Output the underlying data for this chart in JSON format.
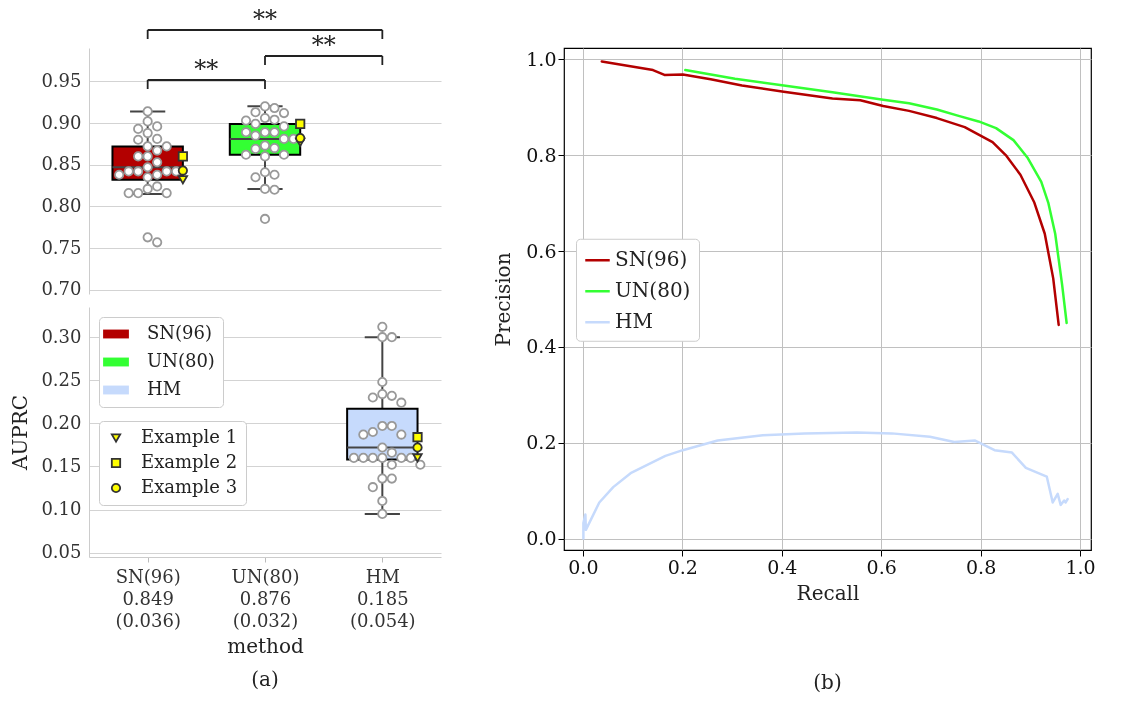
{
  "chart_data": [
    {
      "type": "box",
      "categories": [
        "SN(96)\n0.849\n(0.036)",
        "UN(80)\n0.876\n(0.032)",
        "HM\n0.185\n(0.054)"
      ],
      "ylim": [
        0.695,
        0.99
      ],
      "yticks": [
        {
          "value": 0.7,
          "label": "0.70"
        },
        0.75,
        {
          "value": 0.8,
          "label": "0.80"
        },
        0.85,
        {
          "value": 0.9,
          "label": "0.90"
        },
        0.95
      ],
      "grid": "y",
      "tick_labels": "y",
      "annotations": [
        "**",
        "**",
        "**"
      ],
      "series": [
        {
          "type": "box",
          "color": "#b30000",
          "boxes": [
            {
              "low": 0.815,
              "q1": 0.832,
              "median": 0.847,
              "q3": 0.872,
              "high": 0.914
            },
            null,
            null
          ]
        },
        {
          "type": "box",
          "color": "#33ff33",
          "boxes": [
            null,
            {
              "low": 0.821,
              "q1": 0.862,
              "median": 0.881,
              "q3": 0.899,
              "high": 0.92
            },
            null
          ]
        },
        {
          "type": "scatter",
          "color": "#999999",
          "marker": "circle",
          "x": [
            "SN(96)\n0.849\n(0.036)",
            "SN(96)\n0.849\n(0.036)",
            "SN(96)\n0.849\n(0.036)",
            "SN(96)\n0.849\n(0.036)",
            "SN(96)\n0.849\n(0.036)",
            "SN(96)\n0.849\n(0.036)",
            "SN(96)\n0.849\n(0.036)",
            "SN(96)\n0.849\n(0.036)",
            "SN(96)\n0.849\n(0.036)",
            "SN(96)\n0.849\n(0.036)",
            "SN(96)\n0.849\n(0.036)",
            "SN(96)\n0.849\n(0.036)",
            "SN(96)\n0.849\n(0.036)",
            "SN(96)\n0.849\n(0.036)",
            "SN(96)\n0.849\n(0.036)",
            "SN(96)\n0.849\n(0.036)",
            "SN(96)\n0.849\n(0.036)",
            "SN(96)\n0.849\n(0.036)",
            "SN(96)\n0.849\n(0.036)",
            "SN(96)\n0.849\n(0.036)",
            "SN(96)\n0.849\n(0.036)",
            "SN(96)\n0.849\n(0.036)",
            "SN(96)\n0.849\n(0.036)",
            "SN(96)\n0.849\n(0.036)",
            "SN(96)\n0.849\n(0.036)",
            "SN(96)\n0.849\n(0.036)",
            "SN(96)\n0.849\n(0.036)",
            "SN(96)\n0.849\n(0.036)",
            "UN(80)\n0.876\n(0.032)",
            "UN(80)\n0.876\n(0.032)",
            "UN(80)\n0.876\n(0.032)",
            "UN(80)\n0.876\n(0.032)",
            "UN(80)\n0.876\n(0.032)",
            "UN(80)\n0.876\n(0.032)",
            "UN(80)\n0.876\n(0.032)",
            "UN(80)\n0.876\n(0.032)",
            "UN(80)\n0.876\n(0.032)",
            "UN(80)\n0.876\n(0.032)",
            "UN(80)\n0.876\n(0.032)",
            "UN(80)\n0.876\n(0.032)",
            "UN(80)\n0.876\n(0.032)",
            "UN(80)\n0.876\n(0.032)",
            "UN(80)\n0.876\n(0.032)",
            "UN(80)\n0.876\n(0.032)",
            "UN(80)\n0.876\n(0.032)",
            "UN(80)\n0.876\n(0.032)",
            "UN(80)\n0.876\n(0.032)",
            "UN(80)\n0.876\n(0.032)",
            "UN(80)\n0.876\n(0.032)",
            "UN(80)\n0.876\n(0.032)",
            "UN(80)\n0.876\n(0.032)",
            "UN(80)\n0.876\n(0.032)",
            "UN(80)\n0.876\n(0.032)",
            "UN(80)\n0.876\n(0.032)",
            "UN(80)\n0.876\n(0.032)"
          ],
          "values": [
            0.914,
            0.902,
            0.896,
            0.893,
            0.888,
            0.881,
            0.88,
            0.872,
            0.872,
            0.867,
            0.86,
            0.86,
            0.853,
            0.847,
            0.842,
            0.842,
            0.842,
            0.842,
            0.838,
            0.838,
            0.835,
            0.824,
            0.821,
            0.816,
            0.816,
            0.816,
            0.763,
            0.757,
            0.92,
            0.918,
            0.913,
            0.912,
            0.906,
            0.904,
            0.903,
            0.899,
            0.896,
            0.889,
            0.889,
            0.889,
            0.885,
            0.881,
            0.881,
            0.873,
            0.87,
            0.869,
            0.862,
            0.86,
            0.862,
            0.841,
            0.838,
            0.835,
            0.821,
            0.82,
            0.785
          ]
        },
        {
          "type": "scatter",
          "color": "#ffff00",
          "marker": "triangle-down",
          "x": [
            "SN(96)\n0.849\n(0.036)",
            "UN(80)\n0.876\n(0.032)"
          ],
          "values": [
            0.832,
            0.877
          ]
        },
        {
          "type": "scatter",
          "color": "#ffff00",
          "marker": "square",
          "x": [
            "SN(96)\n0.849\n(0.036)",
            "UN(80)\n0.876\n(0.032)"
          ],
          "values": [
            0.86,
            0.899
          ]
        },
        {
          "type": "scatter",
          "color": "#ffff00",
          "marker": "circle",
          "x": [
            "SN(96)\n0.849\n(0.036)",
            "UN(80)\n0.876\n(0.032)"
          ],
          "values": [
            0.843,
            0.882
          ]
        }
      ]
    },
    {
      "type": "box",
      "categories": [
        "SN(96)\n0.849\n(0.036)",
        "UN(80)\n0.876\n(0.032)",
        "HM\n0.185\n(0.054)"
      ],
      "ylim": [
        0.045,
        0.335
      ],
      "yticks": [
        0.05,
        {
          "value": 0.1,
          "label": "0.10"
        },
        0.15,
        {
          "value": 0.2,
          "label": "0.20"
        },
        0.25,
        {
          "value": 0.3,
          "label": "0.30"
        }
      ],
      "xlabel": "method",
      "ylabel": "AUPRC",
      "grid": "y",
      "legend": "top left",
      "annotations": [
        "(a)"
      ],
      "series": [
        {
          "type": "box",
          "name": "SN(96)",
          "color": "#b30000",
          "boxes": [
            null,
            null,
            null
          ]
        },
        {
          "type": "box",
          "name": "UN(80)",
          "color": "#33ff33",
          "boxes": [
            null,
            null,
            null
          ]
        },
        {
          "type": "box",
          "name": "HM",
          "color": "#c6dafc",
          "boxes": [
            null,
            null,
            {
              "low": 0.095,
              "q1": 0.158,
              "median": 0.172,
              "q3": 0.217,
              "high": 0.3
            }
          ]
        },
        {
          "type": "scatter",
          "color": "#999999",
          "marker": "circle",
          "x": [
            "HM\n0.185\n(0.054)",
            "HM\n0.185\n(0.054)",
            "HM\n0.185\n(0.054)",
            "HM\n0.185\n(0.054)",
            "HM\n0.185\n(0.054)",
            "HM\n0.185\n(0.054)",
            "HM\n0.185\n(0.054)",
            "HM\n0.185\n(0.054)",
            "HM\n0.185\n(0.054)",
            "HM\n0.185\n(0.054)",
            "HM\n0.185\n(0.054)",
            "HM\n0.185\n(0.054)",
            "HM\n0.185\n(0.054)",
            "HM\n0.185\n(0.054)",
            "HM\n0.185\n(0.054)",
            "HM\n0.185\n(0.054)",
            "HM\n0.185\n(0.054)",
            "HM\n0.185\n(0.054)",
            "HM\n0.185\n(0.054)",
            "HM\n0.185\n(0.054)",
            "HM\n0.185\n(0.054)",
            "HM\n0.185\n(0.054)",
            "HM\n0.185\n(0.054)",
            "HM\n0.185\n(0.054)",
            "HM\n0.185\n(0.054)",
            "HM\n0.185\n(0.054)",
            "HM\n0.185\n(0.054)",
            "HM\n0.185\n(0.054)"
          ],
          "values": [
            0.312,
            0.3,
            0.3,
            0.248,
            0.234,
            0.232,
            0.23,
            0.224,
            0.197,
            0.197,
            0.19,
            0.187,
            0.187,
            0.172,
            0.166,
            0.16,
            0.16,
            0.16,
            0.16,
            0.16,
            0.16,
            0.152,
            0.152,
            0.136,
            0.136,
            0.126,
            0.11,
            0.095
          ]
        },
        {
          "type": "scatter",
          "name": "Example 1",
          "color": "#ffff00",
          "marker": "triangle-down",
          "x": [
            "HM\n0.185\n(0.054)"
          ],
          "values": [
            0.16
          ]
        },
        {
          "type": "scatter",
          "name": "Example 2",
          "color": "#ffff00",
          "marker": "square",
          "x": [
            "HM\n0.185\n(0.054)"
          ],
          "values": [
            0.184
          ]
        },
        {
          "type": "scatter",
          "name": "Example 3",
          "color": "#ffff00",
          "marker": "circle",
          "x": [
            "HM\n0.185\n(0.054)"
          ],
          "values": [
            0.172
          ]
        }
      ]
    },
    {
      "type": "line",
      "xlabel": "Recall",
      "ylabel": "Precision",
      "xlim": [
        -0.038,
        1.022
      ],
      "ylim": [
        -0.023,
        1.023
      ],
      "xticks": [
        {
          "value": 0,
          "label": "0.0"
        },
        0.2,
        0.4,
        0.6,
        0.8,
        {
          "value": 1,
          "label": "1.0"
        }
      ],
      "yticks": [
        {
          "value": 0,
          "label": "0.0"
        },
        0.2,
        0.4,
        0.6,
        0.8,
        {
          "value": 1,
          "label": "1.0"
        }
      ],
      "grid": true,
      "legend": "left",
      "annotations": [
        "(b)"
      ],
      "series": [
        {
          "name": "SN(96)",
          "color": "#b30000",
          "x": [
            0.038,
            0.141,
            0.164,
            0.201,
            0.257,
            0.32,
            0.404,
            0.502,
            0.558,
            0.604,
            0.656,
            0.712,
            0.768,
            0.824,
            0.852,
            0.88,
            0.908,
            0.929,
            0.946,
            0.957
          ],
          "values": [
            0.995,
            0.977,
            0.967,
            0.968,
            0.958,
            0.945,
            0.932,
            0.918,
            0.914,
            0.902,
            0.892,
            0.877,
            0.858,
            0.827,
            0.798,
            0.759,
            0.701,
            0.636,
            0.543,
            0.446
          ]
        },
        {
          "name": "UN(80)",
          "color": "#33ff33",
          "x": [
            0.206,
            0.306,
            0.404,
            0.502,
            0.604,
            0.656,
            0.712,
            0.754,
            0.796,
            0.831,
            0.866,
            0.894,
            0.922,
            0.936,
            0.95,
            0.964,
            0.973
          ],
          "values": [
            0.977,
            0.959,
            0.945,
            0.931,
            0.915,
            0.908,
            0.895,
            0.882,
            0.87,
            0.856,
            0.831,
            0.795,
            0.744,
            0.701,
            0.636,
            0.529,
            0.45
          ]
        },
        {
          "name": "HM",
          "color": "#c6dafc",
          "x": [
            0.001,
            0.001,
            0.005,
            0.006,
            0.033,
            0.061,
            0.096,
            0.166,
            0.201,
            0.271,
            0.362,
            0.446,
            0.551,
            0.621,
            0.698,
            0.747,
            0.789,
            0.828,
            0.863,
            0.891,
            0.933,
            0.945,
            0.955,
            0.961,
            0.968,
            0.971,
            0.975
          ],
          "values": [
            0.001,
            0.033,
            0.051,
            0.019,
            0.076,
            0.108,
            0.137,
            0.173,
            0.185,
            0.205,
            0.216,
            0.22,
            0.222,
            0.22,
            0.213,
            0.202,
            0.205,
            0.185,
            0.18,
            0.148,
            0.13,
            0.076,
            0.094,
            0.071,
            0.08,
            0.076,
            0.083
          ]
        }
      ]
    }
  ]
}
